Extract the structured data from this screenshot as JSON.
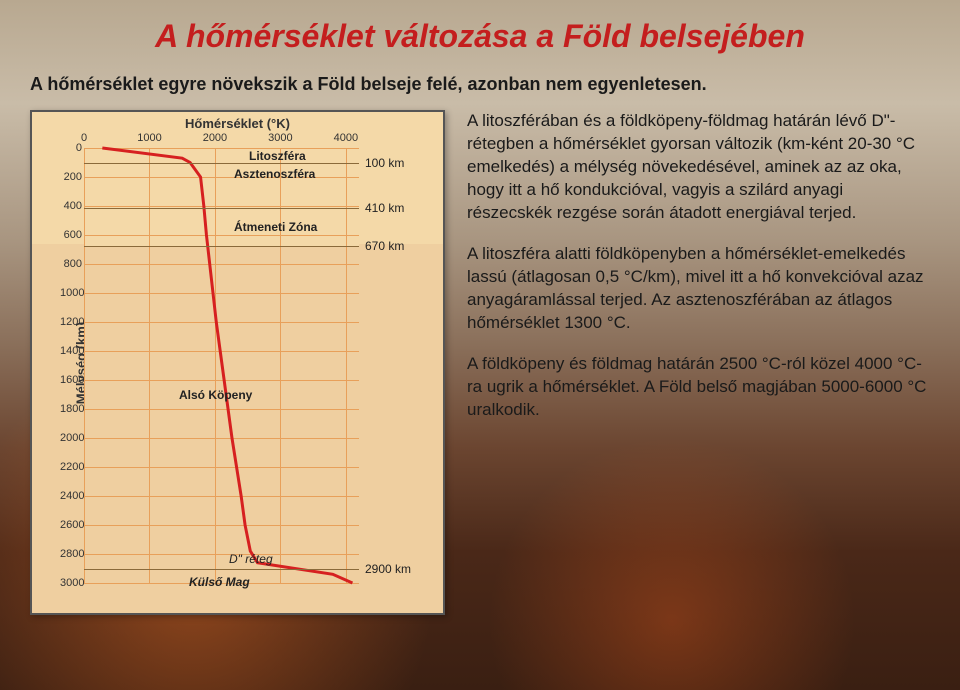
{
  "title": "A hőmérséklet változása a Föld belsejében",
  "subtitle": "A hőmérséklet egyre növekszik a Föld belseje felé, azonban nem egyenletesen.",
  "paragraphs": {
    "p1": "A litoszférában és a földköpeny-földmag határán lévő D\"-rétegben a hőmérséklet gyorsan változik (km-ként 20-30 °C emelkedés) a mélység növekedésével, aminek az az oka, hogy itt a hő kondukcióval, vagyis a szilárd anyagi részecskék rezgése során átadott energiával terjed.",
    "p2": "A litoszféra alatti földköpenyben a hőmérséklet-emelkedés lassú (átlagosan 0,5 °C/km), mivel itt a hő konvekcióval azaz anyagáramlással terjed. Az asztenoszférában az átlagos hőmérséklet 1300 °C.",
    "p3": "A földköpeny és földmag határán 2500 °C-ról közel 4000 °C-ra ugrik a hőmérséklet. A Föld belső magjában 5000-6000 °C uralkodik."
  },
  "chart": {
    "type": "line",
    "x_label": "Hőmérséklet (°K)",
    "y_label": "Mélység (km)",
    "x_ticks": [
      0,
      1000,
      2000,
      3000,
      4000
    ],
    "y_ticks": [
      0,
      200,
      400,
      600,
      800,
      1000,
      1200,
      1400,
      1600,
      1800,
      2000,
      2200,
      2400,
      2600,
      2800,
      3000
    ],
    "xlim": [
      0,
      4200
    ],
    "ylim": [
      0,
      3000
    ],
    "upper_mantle_bg": "#f4d9a8",
    "lower_bg": "#efcfa0",
    "grid_color": "#e8a05a",
    "line_color": "#d62020",
    "line_width": 3,
    "curve_points": [
      [
        280,
        0
      ],
      [
        1500,
        70
      ],
      [
        1620,
        100
      ],
      [
        1780,
        200
      ],
      [
        1830,
        400
      ],
      [
        1870,
        600
      ],
      [
        1920,
        800
      ],
      [
        1970,
        1000
      ],
      [
        2020,
        1200
      ],
      [
        2080,
        1400
      ],
      [
        2140,
        1600
      ],
      [
        2200,
        1800
      ],
      [
        2260,
        2000
      ],
      [
        2330,
        2200
      ],
      [
        2400,
        2400
      ],
      [
        2460,
        2600
      ],
      [
        2540,
        2780
      ],
      [
        2650,
        2860
      ],
      [
        3800,
        2940
      ],
      [
        4100,
        3000
      ]
    ],
    "annotations": {
      "litoszfera": "Litoszféra",
      "asztenoszfera": "Asztenoszféra",
      "atmeneti": "Átmeneti Zóna",
      "km100": "100 km",
      "km410": "410 km",
      "km670": "670 km",
      "also_kopeny": "Alsó Köpeny",
      "d_reteg": "D\" réteg",
      "km2900": "2900 km",
      "kulso_mag": "Külső Mag"
    },
    "upper_split_depth": 670,
    "depth_line_100": 100,
    "depth_line_410": 410,
    "depth_line_670": 670,
    "depth_line_2900": 2900,
    "border_color": "#555555",
    "text_color": "#333333"
  }
}
